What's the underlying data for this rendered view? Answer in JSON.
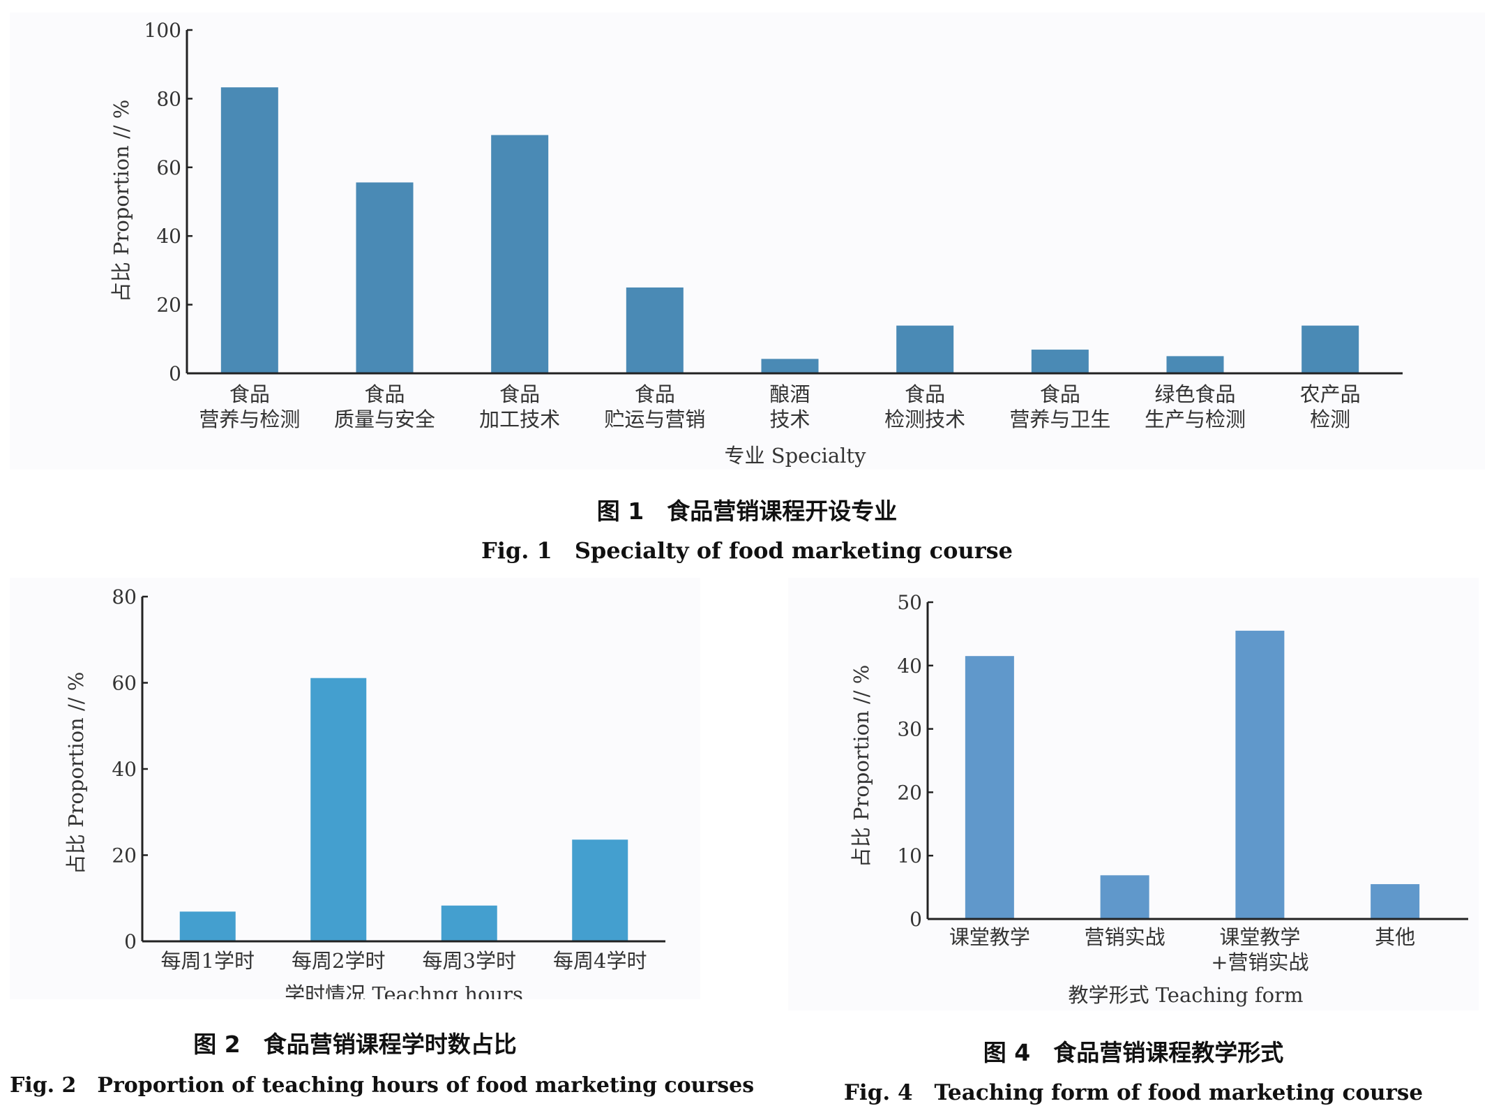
{
  "chart_data": [
    {
      "type": "bar",
      "caption_cn": "图 1　食品营销课程开设专业",
      "caption_en": "Fig. 1　Specialty of food marketing course",
      "xlabel": "专业 Specialty",
      "ylabel": "占比 Proportion // %",
      "ylim": [
        0,
        100
      ],
      "yticks": [
        0,
        20,
        40,
        60,
        80,
        100
      ],
      "color": "#4a8ab5",
      "categories": [
        [
          "食品",
          "营养与检测"
        ],
        [
          "食品",
          "质量与安全"
        ],
        [
          "食品",
          "加工技术"
        ],
        [
          "食品",
          "贮运与营销"
        ],
        [
          "酿酒",
          "技术"
        ],
        [
          "食品",
          "检测技术"
        ],
        [
          "食品",
          "营养与卫生"
        ],
        [
          "绿色食品",
          "生产与检测"
        ],
        [
          "农产品",
          "检测"
        ]
      ],
      "values": [
        83.3,
        55.6,
        69.4,
        25.0,
        4.2,
        13.9,
        6.9,
        5.0,
        13.9
      ]
    },
    {
      "type": "bar",
      "caption_cn": "图 2　食品营销课程学时数占比",
      "caption_en": "Fig. 2　Proportion of teaching hours of food marketing courses",
      "xlabel": "学时情况 Teachng hours",
      "ylabel": "占比 Proportion // %",
      "ylim": [
        0,
        80
      ],
      "yticks": [
        0,
        20,
        40,
        60,
        80
      ],
      "color": "#449fcf",
      "categories": [
        [
          "每周1学时"
        ],
        [
          "每周2学时"
        ],
        [
          "每周3学时"
        ],
        [
          "每周4学时"
        ]
      ],
      "values": [
        6.9,
        61.1,
        8.3,
        23.6
      ]
    },
    {
      "type": "bar",
      "caption_cn": "图 4　食品营销课程教学形式",
      "caption_en": "Fig. 4　Teaching form of food marketing course",
      "xlabel": "教学形式 Teaching form",
      "ylabel": "占比 Proportion // %",
      "ylim": [
        0,
        50
      ],
      "yticks": [
        0,
        10,
        20,
        30,
        40,
        50
      ],
      "color": "#6098cb",
      "categories": [
        [
          "课堂教学"
        ],
        [
          "营销实战"
        ],
        [
          "课堂教学",
          "+营销实战"
        ],
        [
          "其他"
        ]
      ],
      "values": [
        41.5,
        6.9,
        45.5,
        5.5
      ]
    }
  ]
}
